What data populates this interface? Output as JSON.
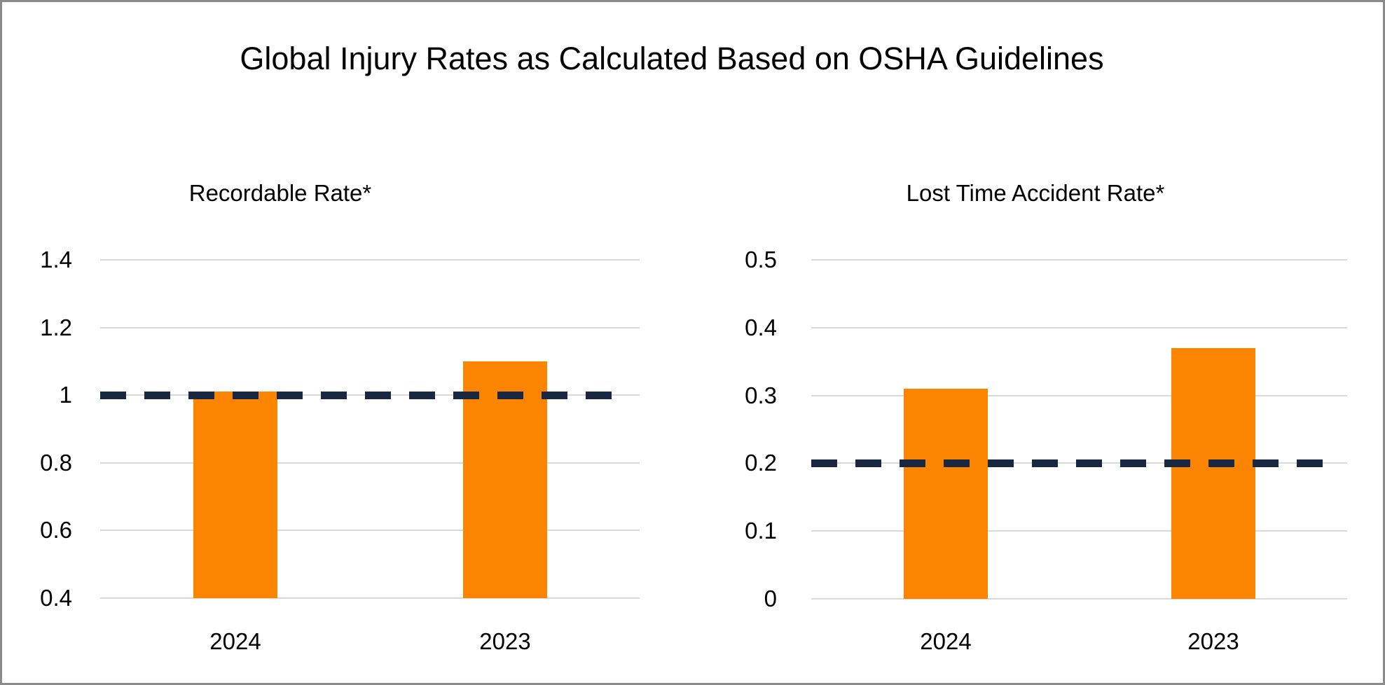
{
  "title": "Global Injury Rates as Calculated Based on OSHA Guidelines",
  "colors": {
    "bar_orange": "#FB8500",
    "target_line_navy": "#182842",
    "gridline_gray": "#D9D9D9",
    "frame_border_gray": "#8A8A8A",
    "text_black": "#000000",
    "background_white": "#FFFFFF"
  },
  "chart_data": [
    {
      "type": "bar",
      "title": "Recordable Rate*",
      "categories": [
        "2024",
        "2023"
      ],
      "values": [
        1.01,
        1.1
      ],
      "ylim": [
        0.4,
        1.4
      ],
      "yticks": [
        1.4,
        1.2,
        1.0,
        0.8,
        0.6,
        0.4
      ],
      "ytick_labels": [
        "1.4",
        "1.2",
        "1",
        "0.8",
        "0.6",
        "0.4"
      ],
      "xlabel": "",
      "ylabel": "",
      "grid": true,
      "legend": "none",
      "target_line": {
        "value": 1.0,
        "style": "dashed"
      }
    },
    {
      "type": "bar",
      "title": "Lost Time Accident Rate*",
      "categories": [
        "2024",
        "2023"
      ],
      "values": [
        0.31,
        0.37
      ],
      "ylim": [
        0,
        0.5
      ],
      "yticks": [
        0.5,
        0.4,
        0.3,
        0.2,
        0.1,
        0
      ],
      "ytick_labels": [
        "0.5",
        "0.4",
        "0.3",
        "0.2",
        "0.1",
        "0"
      ],
      "xlabel": "",
      "ylabel": "",
      "grid": true,
      "legend": "none",
      "target_line": {
        "value": 0.2,
        "style": "dashed"
      }
    }
  ]
}
